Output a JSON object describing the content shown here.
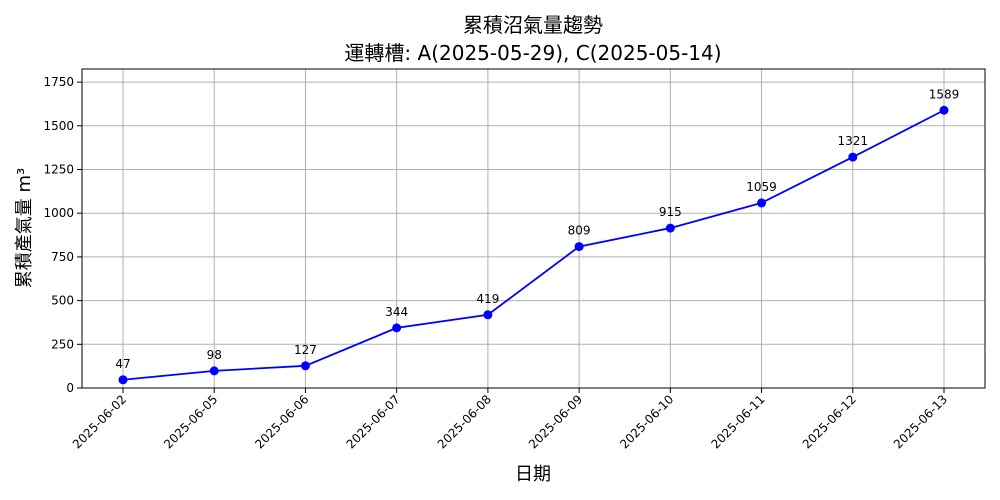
{
  "chart_data": {
    "type": "line",
    "title_line1": "累積沼氣量趨勢",
    "title_line2": "運轉槽: A(2025-05-29), C(2025-05-14)",
    "xlabel": "日期",
    "ylabel": "累積產氣量 m³",
    "categories": [
      "2025-06-02",
      "2025-06-05",
      "2025-06-06",
      "2025-06-07",
      "2025-06-08",
      "2025-06-09",
      "2025-06-10",
      "2025-06-11",
      "2025-06-12",
      "2025-06-13"
    ],
    "values": [
      47,
      98,
      127,
      344,
      419,
      809,
      915,
      1059,
      1321,
      1589
    ],
    "ylim": [
      0,
      1825
    ],
    "yticks": [
      0,
      250,
      500,
      750,
      1000,
      1250,
      1500,
      1750
    ],
    "grid": true,
    "line_color": "#0000ff",
    "marker_color": "#0000ff"
  }
}
